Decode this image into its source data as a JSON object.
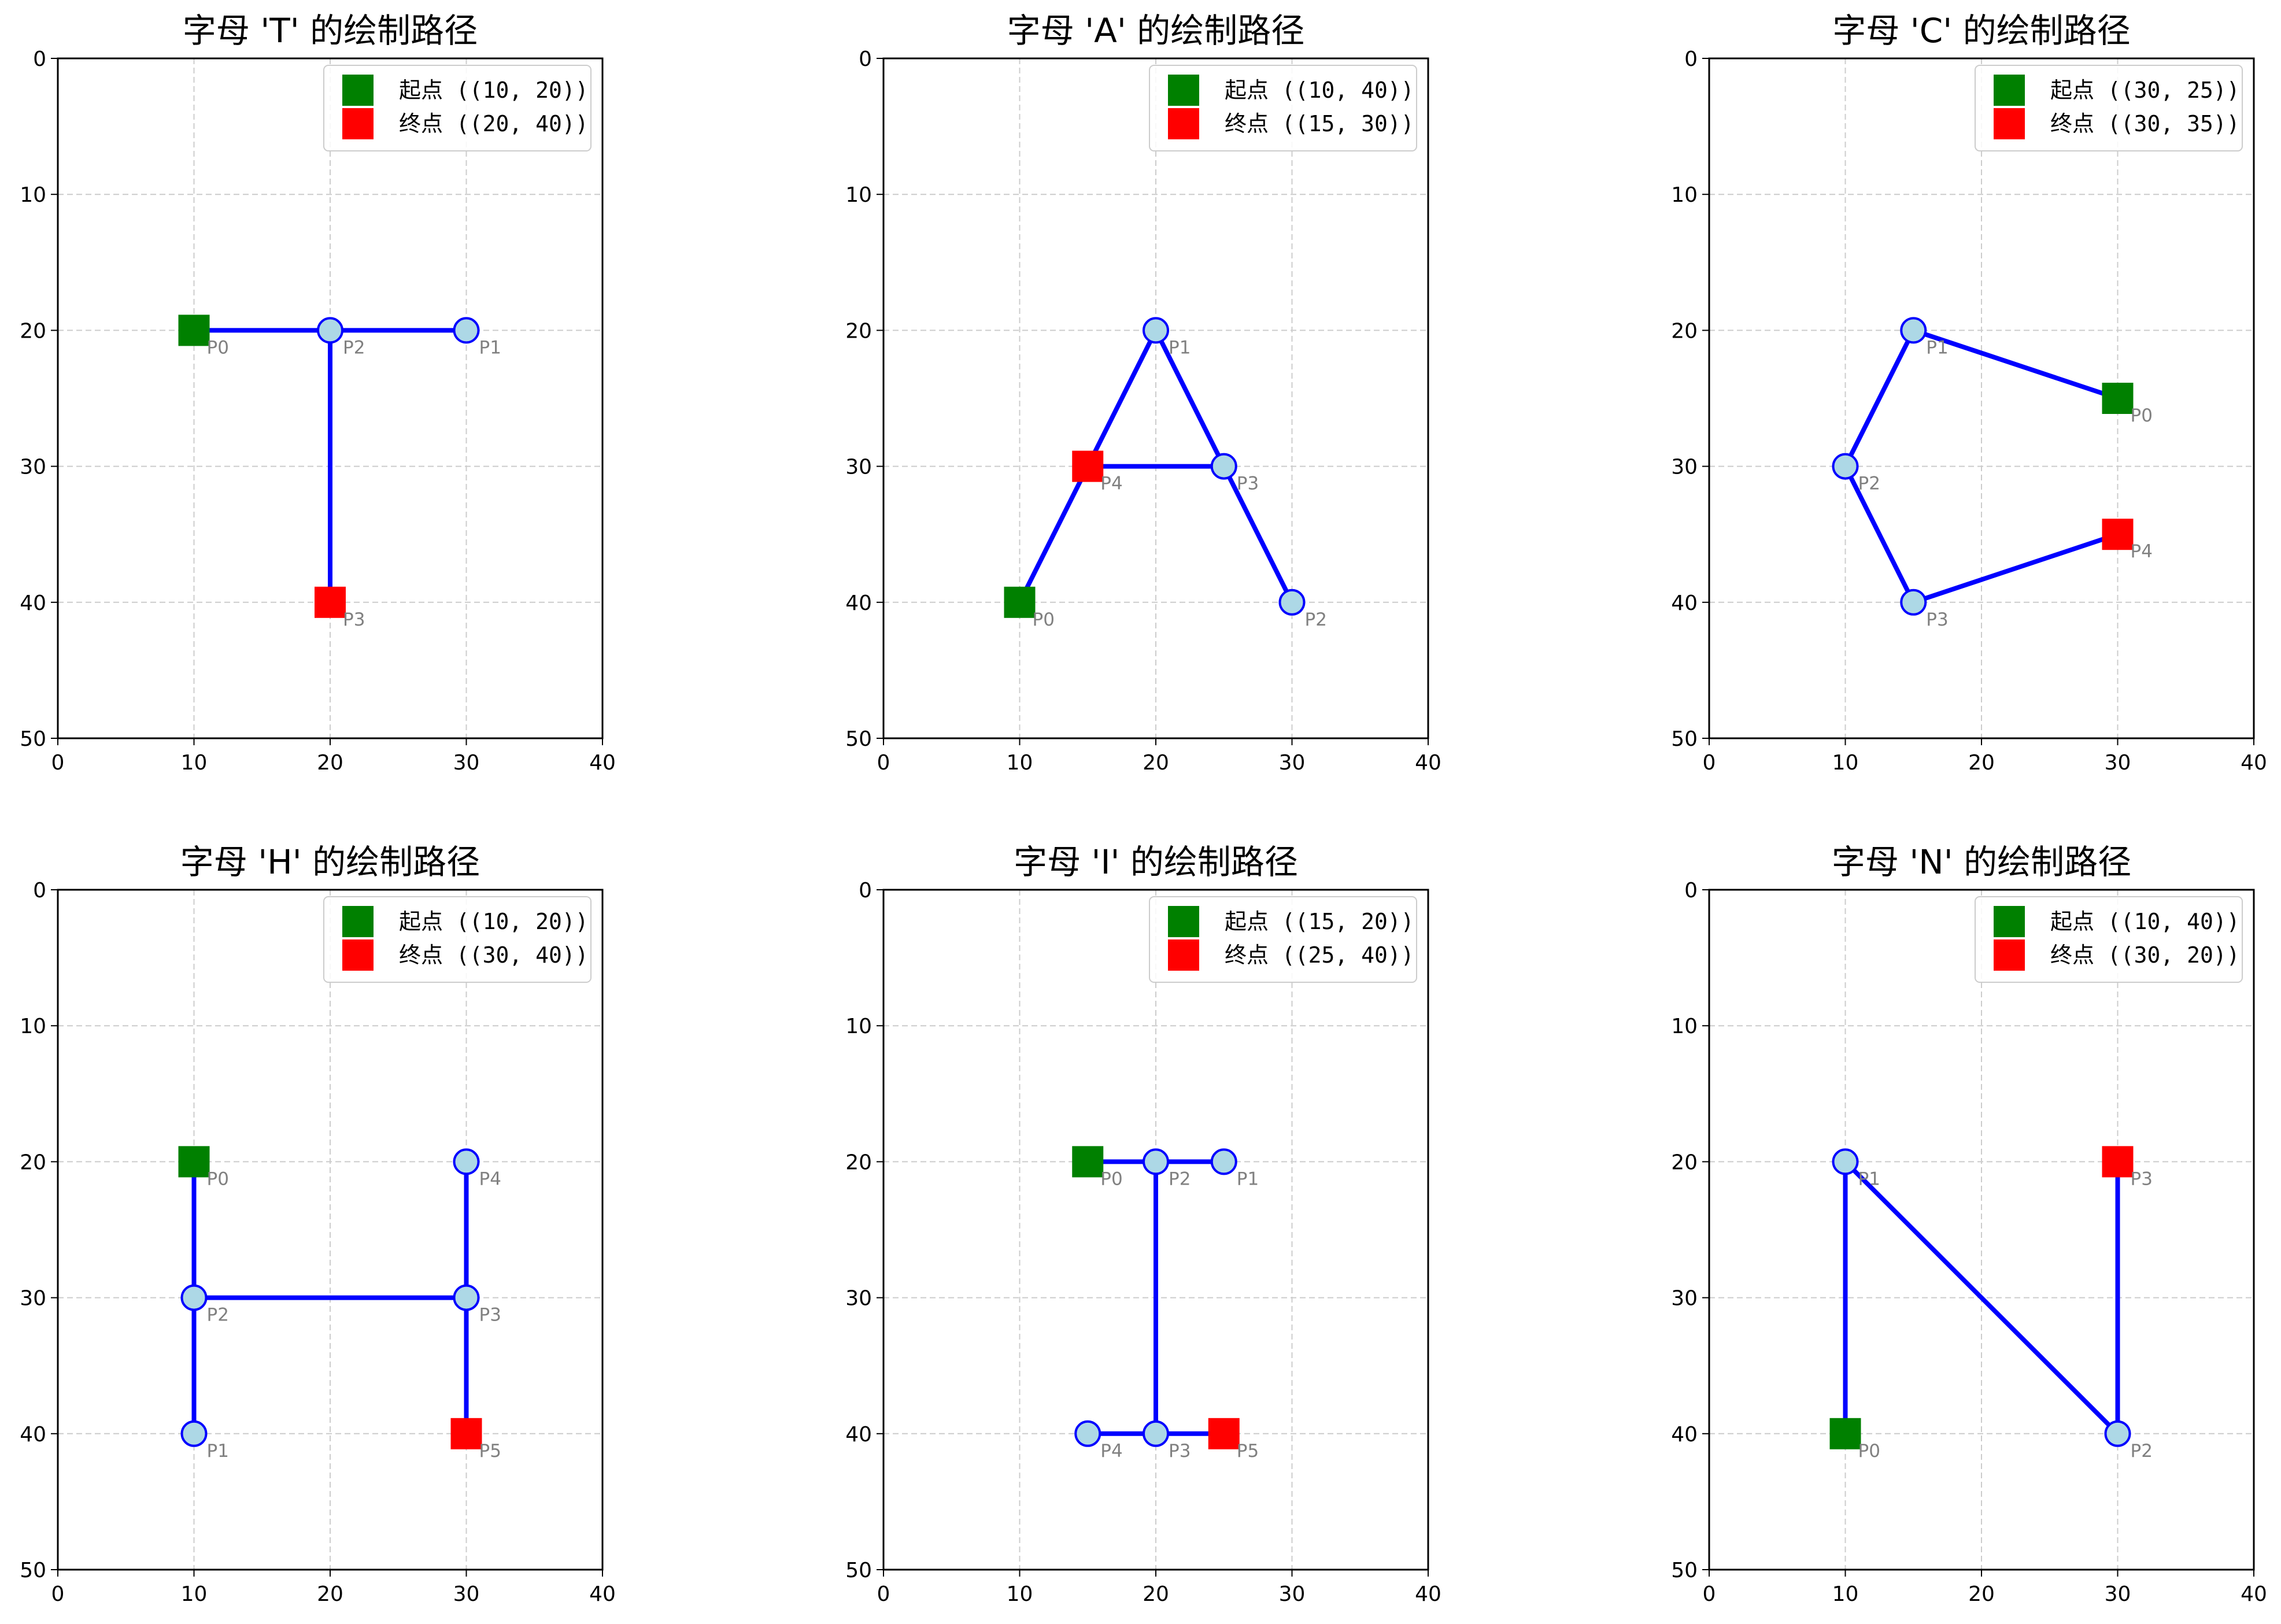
{
  "chart_data": [
    {
      "type": "line",
      "title": "字母 'T' 的绘制路径",
      "xlim": [
        0,
        40
      ],
      "ylim": [
        50,
        0
      ],
      "xticks": [
        "0",
        "10",
        "20",
        "30",
        "40"
      ],
      "yticks": [
        "0",
        "10",
        "20",
        "30",
        "40",
        "50"
      ],
      "grid": true,
      "legend_placement": "upper right",
      "points": [
        {
          "label": "P0",
          "x": 10,
          "y": 20
        },
        {
          "label": "P1",
          "x": 30,
          "y": 20
        },
        {
          "label": "P2",
          "x": 20,
          "y": 20
        },
        {
          "label": "P3",
          "x": 20,
          "y": 40
        }
      ],
      "segments": [
        [
          0,
          1
        ],
        [
          2,
          3
        ]
      ],
      "start_index": 0,
      "end_index": 3,
      "legend": [
        "起点 ((10, 20))",
        "终点 ((20, 40))"
      ]
    },
    {
      "type": "line",
      "title": "字母 'A' 的绘制路径",
      "xlim": [
        0,
        40
      ],
      "ylim": [
        50,
        0
      ],
      "xticks": [
        "0",
        "10",
        "20",
        "30",
        "40"
      ],
      "yticks": [
        "0",
        "10",
        "20",
        "30",
        "40",
        "50"
      ],
      "grid": true,
      "legend_placement": "upper right",
      "points": [
        {
          "label": "P0",
          "x": 10,
          "y": 40
        },
        {
          "label": "P1",
          "x": 20,
          "y": 20
        },
        {
          "label": "P2",
          "x": 30,
          "y": 40
        },
        {
          "label": "P3",
          "x": 25,
          "y": 30
        },
        {
          "label": "P4",
          "x": 15,
          "y": 30
        }
      ],
      "segments": [
        [
          0,
          1
        ],
        [
          1,
          2
        ],
        [
          3,
          4
        ]
      ],
      "start_index": 0,
      "end_index": 4,
      "legend": [
        "起点 ((10, 40))",
        "终点 ((15, 30))"
      ]
    },
    {
      "type": "line",
      "title": "字母 'C' 的绘制路径",
      "xlim": [
        0,
        40
      ],
      "ylim": [
        50,
        0
      ],
      "xticks": [
        "0",
        "10",
        "20",
        "30",
        "40"
      ],
      "yticks": [
        "0",
        "10",
        "20",
        "30",
        "40",
        "50"
      ],
      "grid": true,
      "legend_placement": "upper right",
      "points": [
        {
          "label": "P0",
          "x": 30,
          "y": 25
        },
        {
          "label": "P1",
          "x": 15,
          "y": 20
        },
        {
          "label": "P2",
          "x": 10,
          "y": 30
        },
        {
          "label": "P3",
          "x": 15,
          "y": 40
        },
        {
          "label": "P4",
          "x": 30,
          "y": 35
        }
      ],
      "segments": [
        [
          0,
          1
        ],
        [
          1,
          2
        ],
        [
          2,
          3
        ],
        [
          3,
          4
        ]
      ],
      "start_index": 0,
      "end_index": 4,
      "legend": [
        "起点 ((30, 25))",
        "终点 ((30, 35))"
      ]
    },
    {
      "type": "line",
      "title": "字母 'H' 的绘制路径",
      "xlim": [
        0,
        40
      ],
      "ylim": [
        50,
        0
      ],
      "xticks": [
        "0",
        "10",
        "20",
        "30",
        "40"
      ],
      "yticks": [
        "0",
        "10",
        "20",
        "30",
        "40",
        "50"
      ],
      "grid": true,
      "legend_placement": "upper right",
      "points": [
        {
          "label": "P0",
          "x": 10,
          "y": 20
        },
        {
          "label": "P1",
          "x": 10,
          "y": 40
        },
        {
          "label": "P2",
          "x": 10,
          "y": 30
        },
        {
          "label": "P3",
          "x": 30,
          "y": 30
        },
        {
          "label": "P4",
          "x": 30,
          "y": 20
        },
        {
          "label": "P5",
          "x": 30,
          "y": 40
        }
      ],
      "segments": [
        [
          0,
          1
        ],
        [
          2,
          3
        ],
        [
          4,
          5
        ]
      ],
      "start_index": 0,
      "end_index": 5,
      "legend": [
        "起点 ((10, 20))",
        "终点 ((30, 40))"
      ]
    },
    {
      "type": "line",
      "title": "字母 'I' 的绘制路径",
      "xlim": [
        0,
        40
      ],
      "ylim": [
        50,
        0
      ],
      "xticks": [
        "0",
        "10",
        "20",
        "30",
        "40"
      ],
      "yticks": [
        "0",
        "10",
        "20",
        "30",
        "40",
        "50"
      ],
      "grid": true,
      "legend_placement": "upper right",
      "points": [
        {
          "label": "P0",
          "x": 15,
          "y": 20
        },
        {
          "label": "P1",
          "x": 25,
          "y": 20
        },
        {
          "label": "P2",
          "x": 20,
          "y": 20
        },
        {
          "label": "P3",
          "x": 20,
          "y": 40
        },
        {
          "label": "P4",
          "x": 15,
          "y": 40
        },
        {
          "label": "P5",
          "x": 25,
          "y": 40
        }
      ],
      "segments": [
        [
          0,
          1
        ],
        [
          2,
          3
        ],
        [
          4,
          5
        ]
      ],
      "start_index": 0,
      "end_index": 5,
      "legend": [
        "起点 ((15, 20))",
        "终点 ((25, 40))"
      ]
    },
    {
      "type": "line",
      "title": "字母 'N' 的绘制路径",
      "xlim": [
        0,
        40
      ],
      "ylim": [
        50,
        0
      ],
      "xticks": [
        "0",
        "10",
        "20",
        "30",
        "40"
      ],
      "yticks": [
        "0",
        "10",
        "20",
        "30",
        "40",
        "50"
      ],
      "grid": true,
      "legend_placement": "upper right",
      "points": [
        {
          "label": "P0",
          "x": 10,
          "y": 40
        },
        {
          "label": "P1",
          "x": 10,
          "y": 20
        },
        {
          "label": "P2",
          "x": 30,
          "y": 40
        },
        {
          "label": "P3",
          "x": 30,
          "y": 20
        }
      ],
      "segments": [
        [
          0,
          1
        ],
        [
          1,
          2
        ],
        [
          2,
          3
        ]
      ],
      "start_index": 0,
      "end_index": 3,
      "legend": [
        "起点 ((10, 40))",
        "终点 ((30, 20))"
      ]
    }
  ],
  "colors": {
    "path_line": "#0000ff",
    "point_fill": "#add8e6",
    "point_edge": "#0000ff",
    "start_marker": "#008000",
    "end_marker": "#ff0000",
    "grid": "#cccccc",
    "point_label": "#808080"
  }
}
